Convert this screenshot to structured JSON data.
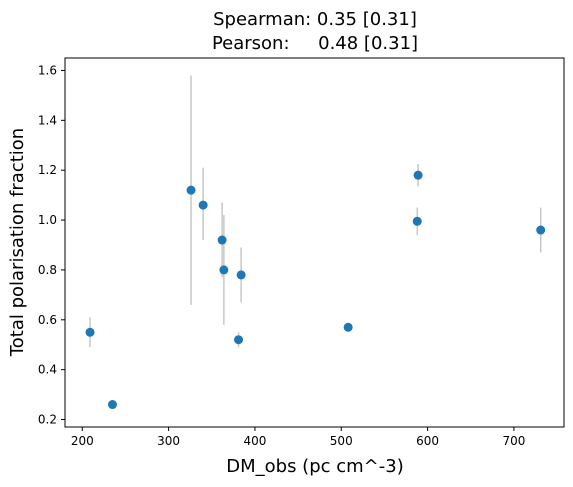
{
  "chart_data": {
    "type": "scatter",
    "title_lines": [
      "Spearman: 0.35 [0.31]",
      "Pearson:     0.48 [0.31]"
    ],
    "xlabel": "DM_obs (pc cm^-3)",
    "ylabel": "Total polarisation fraction",
    "xlim": [
      180,
      758
    ],
    "ylim": [
      0.17,
      1.65
    ],
    "xticks": [
      200,
      300,
      400,
      500,
      600,
      700
    ],
    "yticks": [
      0.2,
      0.4,
      0.6,
      0.8,
      1.0,
      1.2,
      1.4,
      1.6
    ],
    "ytick_labels": [
      "0.2",
      "0.4",
      "0.6",
      "0.8",
      "1.0",
      "1.2",
      "1.4",
      "1.6"
    ],
    "grid": false,
    "marker_color": "#1f77b4",
    "errorbar_color": "#c8c8c8",
    "points": [
      {
        "x": 209,
        "y": 0.55,
        "err_low": 0.06,
        "err_high": 0.06
      },
      {
        "x": 235,
        "y": 0.26,
        "err_low": 0.0,
        "err_high": 0.0
      },
      {
        "x": 326,
        "y": 1.12,
        "err_low": 0.46,
        "err_high": 0.46
      },
      {
        "x": 340,
        "y": 1.06,
        "err_low": 0.14,
        "err_high": 0.15
      },
      {
        "x": 362,
        "y": 0.92,
        "err_low": 0.15,
        "err_high": 0.15
      },
      {
        "x": 364,
        "y": 0.8,
        "err_low": 0.22,
        "err_high": 0.22
      },
      {
        "x": 381,
        "y": 0.52,
        "err_low": 0.03,
        "err_high": 0.03
      },
      {
        "x": 384,
        "y": 0.78,
        "err_low": 0.11,
        "err_high": 0.11
      },
      {
        "x": 508,
        "y": 0.57,
        "err_low": 0.0,
        "err_high": 0.0
      },
      {
        "x": 588,
        "y": 0.995,
        "err_low": 0.055,
        "err_high": 0.055
      },
      {
        "x": 589,
        "y": 1.18,
        "err_low": 0.045,
        "err_high": 0.045
      },
      {
        "x": 731,
        "y": 0.96,
        "err_low": 0.09,
        "err_high": 0.09
      }
    ]
  }
}
